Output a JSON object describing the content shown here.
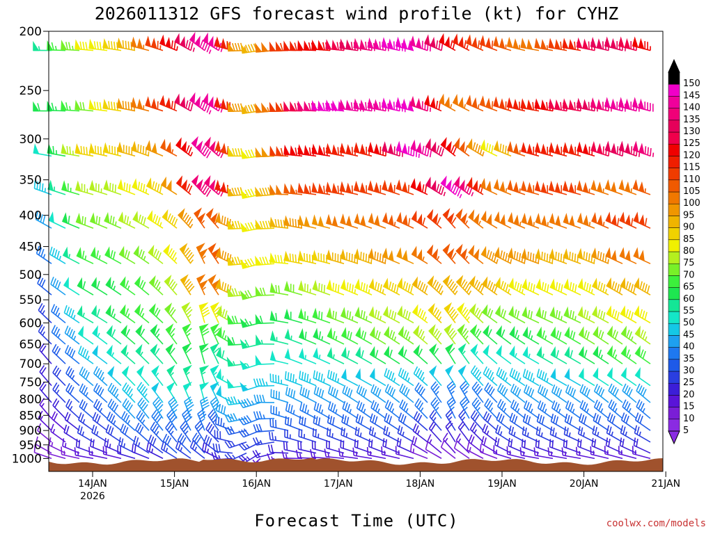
{
  "chart_data": {
    "type": "wind-barb-profile",
    "title": "2026011312 GFS forecast wind profile (kt) for CYHZ",
    "xlabel": "Forecast Time (UTC)",
    "ylabel": "",
    "credit": "coolwx.com/models",
    "y_ticks": [
      "200",
      "250",
      "300",
      "350",
      "400",
      "450",
      "500",
      "550",
      "600",
      "650",
      "700",
      "750",
      "800",
      "850",
      "900",
      "950",
      "1000"
    ],
    "x_ticks": [
      {
        "label": "14JAN",
        "sub": "2026"
      },
      {
        "label": "15JAN",
        "sub": ""
      },
      {
        "label": "16JAN",
        "sub": ""
      },
      {
        "label": "17JAN",
        "sub": ""
      },
      {
        "label": "18JAN",
        "sub": ""
      },
      {
        "label": "19JAN",
        "sub": ""
      },
      {
        "label": "20JAN",
        "sub": ""
      },
      {
        "label": "21JAN",
        "sub": ""
      }
    ],
    "ylim_hpa": [
      200,
      1050
    ],
    "start": "2026011312",
    "end": "2026012100",
    "speed_scale_kt": [
      "5",
      "10",
      "15",
      "20",
      "25",
      "30",
      "35",
      "40",
      "45",
      "50",
      "55",
      "60",
      "65",
      "70",
      "75",
      "80",
      "85",
      "90",
      "95",
      "100",
      "105",
      "110",
      "115",
      "120",
      "125",
      "130",
      "135",
      "140",
      "145",
      "150"
    ],
    "speed_colors": [
      "#8a2be2",
      "#7a1ed6",
      "#5a14d8",
      "#3c1ed8",
      "#2a3ee0",
      "#1e5ae8",
      "#1e78f0",
      "#1ea0f0",
      "#14c8e6",
      "#14e6c8",
      "#14e696",
      "#1ee650",
      "#3cf03c",
      "#78f028",
      "#b4f01e",
      "#f0f000",
      "#f0d200",
      "#f0b400",
      "#f09600",
      "#f07800",
      "#f05a00",
      "#f03c00",
      "#f01e00",
      "#f00000",
      "#f0004b",
      "#e6005a",
      "#f00078",
      "#f0009b",
      "#f000c8",
      "#000000"
    ],
    "terrain_color": "#a0522d",
    "winds": {
      "times": [
        "2026011312",
        "2026011400",
        "2026011412",
        "2026011500",
        "2026011512",
        "2026011600",
        "2026011612",
        "2026011700",
        "2026011712",
        "2026011800",
        "2026011812",
        "2026011900",
        "2026011912",
        "2026012000",
        "2026012012",
        "2026012100"
      ],
      "levels_hpa": [
        215,
        270,
        320,
        370,
        420,
        480,
        540,
        600,
        650,
        700,
        760,
        810,
        860,
        900,
        940,
        980,
        1000
      ],
      "speed_kt": [
        [
          55,
          80,
          90,
          120,
          150,
          85,
          115,
          125,
          140,
          150,
          120,
          110,
          100,
          120,
          135,
          120
        ],
        [
          60,
          70,
          95,
          115,
          150,
          85,
          120,
          150,
          140,
          150,
          100,
          110,
          120,
          130,
          140,
          140
        ],
        [
          50,
          85,
          90,
          100,
          150,
          75,
          120,
          120,
          115,
          150,
          120,
          80,
          120,
          115,
          130,
          140
        ],
        [
          45,
          75,
          80,
          90,
          150,
          80,
          105,
          115,
          110,
          110,
          150,
          100,
          110,
          110,
          100,
          110
        ],
        [
          40,
          70,
          75,
          85,
          110,
          80,
          95,
          100,
          100,
          110,
          110,
          100,
          105,
          100,
          110,
          110
        ],
        [
          35,
          65,
          70,
          80,
          110,
          80,
          85,
          90,
          95,
          100,
          110,
          95,
          95,
          90,
          100,
          100
        ],
        [
          30,
          60,
          65,
          75,
          110,
          70,
          70,
          80,
          85,
          90,
          95,
          90,
          80,
          80,
          90,
          90
        ],
        [
          25,
          55,
          65,
          70,
          85,
          65,
          60,
          70,
          75,
          80,
          90,
          70,
          70,
          75,
          80,
          80
        ],
        [
          25,
          50,
          60,
          65,
          70,
          60,
          55,
          65,
          70,
          75,
          80,
          60,
          65,
          70,
          70,
          80
        ],
        [
          20,
          45,
          55,
          60,
          60,
          55,
          50,
          55,
          60,
          60,
          60,
          50,
          55,
          60,
          65,
          70
        ],
        [
          20,
          40,
          50,
          55,
          55,
          50,
          45,
          45,
          50,
          45,
          50,
          45,
          45,
          50,
          50,
          50
        ],
        [
          20,
          35,
          45,
          50,
          50,
          45,
          40,
          40,
          40,
          40,
          35,
          40,
          40,
          40,
          40,
          40
        ],
        [
          15,
          30,
          40,
          45,
          40,
          40,
          35,
          35,
          35,
          35,
          35,
          35,
          35,
          35,
          35,
          35
        ],
        [
          15,
          25,
          35,
          40,
          35,
          30,
          30,
          30,
          30,
          30,
          25,
          30,
          30,
          30,
          30,
          30
        ],
        [
          10,
          25,
          30,
          35,
          30,
          25,
          25,
          25,
          25,
          25,
          20,
          25,
          25,
          25,
          25,
          25
        ],
        [
          10,
          20,
          25,
          30,
          30,
          25,
          20,
          20,
          20,
          20,
          15,
          20,
          20,
          20,
          20,
          20
        ],
        [
          10,
          15,
          20,
          25,
          25,
          20,
          15,
          15,
          15,
          15,
          10,
          15,
          15,
          15,
          15,
          15
        ]
      ],
      "dir_deg": [
        [
          270,
          275,
          280,
          290,
          310,
          260,
          270,
          275,
          280,
          285,
          300,
          290,
          280,
          280,
          285,
          285
        ],
        [
          270,
          275,
          280,
          290,
          310,
          260,
          270,
          275,
          280,
          285,
          300,
          290,
          280,
          280,
          285,
          285
        ],
        [
          280,
          280,
          285,
          295,
          320,
          260,
          275,
          280,
          285,
          290,
          310,
          295,
          285,
          285,
          290,
          290
        ],
        [
          290,
          285,
          290,
          300,
          320,
          255,
          275,
          280,
          285,
          290,
          310,
          295,
          285,
          285,
          290,
          290
        ],
        [
          300,
          290,
          295,
          305,
          330,
          255,
          280,
          285,
          290,
          295,
          320,
          300,
          290,
          290,
          295,
          295
        ],
        [
          305,
          295,
          300,
          310,
          340,
          250,
          280,
          285,
          290,
          295,
          320,
          300,
          290,
          290,
          295,
          295
        ],
        [
          310,
          300,
          305,
          315,
          340,
          250,
          285,
          290,
          295,
          300,
          320,
          305,
          295,
          295,
          300,
          300
        ],
        [
          315,
          300,
          305,
          315,
          350,
          250,
          285,
          290,
          295,
          300,
          325,
          305,
          295,
          295,
          300,
          300
        ],
        [
          315,
          305,
          310,
          320,
          350,
          250,
          290,
          295,
          300,
          305,
          325,
          310,
          300,
          300,
          305,
          305
        ],
        [
          320,
          305,
          310,
          320,
          350,
          245,
          290,
          295,
          300,
          305,
          330,
          310,
          300,
          300,
          305,
          305
        ],
        [
          320,
          310,
          315,
          325,
          350,
          245,
          290,
          295,
          300,
          305,
          330,
          310,
          300,
          300,
          305,
          305
        ],
        [
          320,
          310,
          315,
          325,
          350,
          245,
          295,
          300,
          305,
          310,
          335,
          315,
          305,
          305,
          310,
          310
        ],
        [
          320,
          310,
          315,
          330,
          350,
          240,
          295,
          300,
          305,
          310,
          335,
          315,
          305,
          305,
          310,
          310
        ],
        [
          315,
          305,
          310,
          325,
          340,
          240,
          290,
          295,
          300,
          305,
          330,
          310,
          300,
          300,
          305,
          305
        ],
        [
          310,
          300,
          305,
          320,
          330,
          235,
          285,
          290,
          295,
          300,
          330,
          305,
          295,
          295,
          300,
          300
        ],
        [
          300,
          290,
          295,
          310,
          320,
          230,
          280,
          285,
          290,
          295,
          320,
          300,
          290,
          290,
          295,
          295
        ],
        [
          290,
          280,
          285,
          300,
          310,
          220,
          270,
          275,
          280,
          285,
          310,
          290,
          280,
          280,
          285,
          285
        ]
      ]
    }
  }
}
